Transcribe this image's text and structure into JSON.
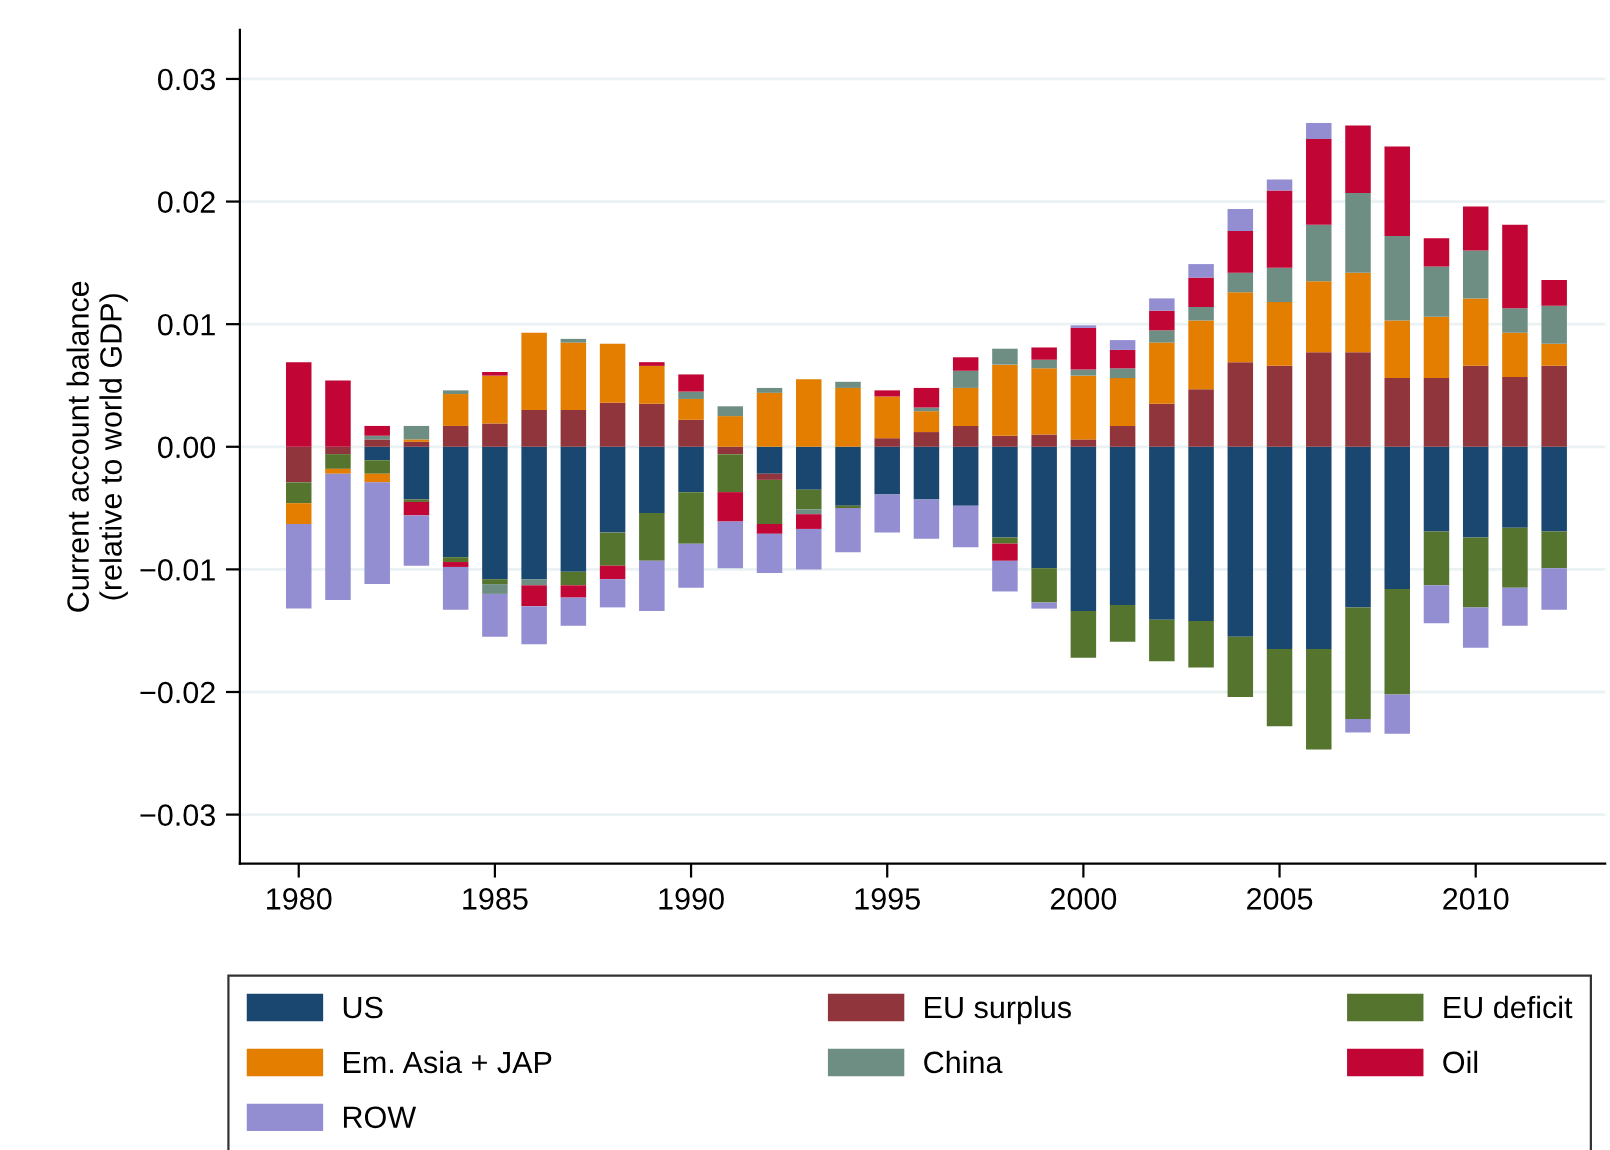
{
  "chart_data": {
    "type": "bar",
    "stacked": true,
    "ylabel": "Current account balance\n(relative to world GDP)",
    "x": [
      1980,
      1981,
      1982,
      1983,
      1984,
      1985,
      1986,
      1987,
      1988,
      1989,
      1990,
      1991,
      1992,
      1993,
      1994,
      1995,
      1996,
      1997,
      1998,
      1999,
      2000,
      2001,
      2002,
      2003,
      2004,
      2005,
      2006,
      2007,
      2008,
      2009,
      2010,
      2011,
      2012
    ],
    "xlim": [
      1978.5,
      2013.3
    ],
    "xticks": [
      1980,
      1985,
      1990,
      1995,
      2000,
      2005,
      2010
    ],
    "ylim": [
      -0.034,
      0.034
    ],
    "yticks": [
      {
        "value": 0.03,
        "label": "0.03"
      },
      {
        "value": 0.02,
        "label": "0.02"
      },
      {
        "value": 0.01,
        "label": "0.01"
      },
      {
        "value": 0,
        "label": "0.00"
      },
      {
        "value": -0.01,
        "label": "−0.01"
      },
      {
        "value": -0.02,
        "label": "−0.02"
      },
      {
        "value": -0.03,
        "label": "−0.03"
      }
    ],
    "grid": "y",
    "legend": "bottom",
    "series": [
      {
        "name": "US",
        "color": "#1a476f",
        "values": [
          0,
          0,
          -0.0011,
          -0.0043,
          -0.009,
          -0.0108,
          -0.0108,
          -0.0102,
          -0.007,
          -0.0054,
          -0.0037,
          0,
          -0.0022,
          -0.0035,
          -0.0048,
          -0.0039,
          -0.0043,
          -0.0048,
          -0.0074,
          -0.0099,
          -0.0134,
          -0.0129,
          -0.0141,
          -0.0142,
          -0.0155,
          -0.0165,
          -0.0165,
          -0.0131,
          -0.0116,
          -0.0069,
          -0.0074,
          -0.0066,
          -0.0069
        ]
      },
      {
        "name": "EU surplus",
        "color": "#90353b",
        "values": [
          -0.0029,
          -0.0006,
          0.0006,
          0.0004,
          0.0017,
          0.0019,
          0.003,
          0.003,
          0.0036,
          0.0035,
          0.0022,
          -0.0006,
          -0.0005,
          0,
          0,
          0.0007,
          0.0012,
          0.0017,
          0.0009,
          0.001,
          0.0006,
          0.0017,
          0.0035,
          0.0047,
          0.0069,
          0.0066,
          0.0077,
          0.0077,
          0.0056,
          0.0056,
          0.0066,
          0.0057,
          0.0066
        ]
      },
      {
        "name": "EU deficit",
        "color": "#55752f",
        "values": [
          -0.0017,
          -0.0012,
          -0.0011,
          -0.0002,
          -0.0004,
          -0.0004,
          0,
          -0.0011,
          -0.0027,
          -0.0039,
          -0.0042,
          -0.0031,
          -0.0036,
          -0.0016,
          -0.0002,
          0,
          0,
          0,
          -0.0005,
          -0.0028,
          -0.0038,
          -0.003,
          -0.0034,
          -0.0038,
          -0.0049,
          -0.0063,
          -0.0082,
          -0.0091,
          -0.0086,
          -0.0044,
          -0.0057,
          -0.0049,
          -0.003
        ]
      },
      {
        "name": "Em. Asia + JAP",
        "color": "#e37e00",
        "values": [
          -0.0017,
          -0.0004,
          -0.0007,
          0.0002,
          0.0026,
          0.0039,
          0.0063,
          0.0055,
          0.0048,
          0.0031,
          0.0017,
          0.0025,
          0.0044,
          0.0055,
          0.0048,
          0.0034,
          0.0017,
          0.0031,
          0.0058,
          0.0054,
          0.0052,
          0.0039,
          0.005,
          0.0056,
          0.0057,
          0.0052,
          0.0058,
          0.0065,
          0.0047,
          0.005,
          0.0055,
          0.0036,
          0.0018
        ]
      },
      {
        "name": "China",
        "color": "#6e8e84",
        "values": [
          0,
          0,
          0.0003,
          0.0011,
          0.0003,
          -0.0008,
          -0.0005,
          0.0003,
          0,
          0,
          0.0006,
          0.0008,
          0.0004,
          -0.0004,
          0.0005,
          0,
          0.0003,
          0.0014,
          0.0013,
          0.0007,
          0.0005,
          0.0008,
          0.001,
          0.0011,
          0.0016,
          0.0028,
          0.0046,
          0.0065,
          0.0069,
          0.0041,
          0.0039,
          0.002,
          0.0031
        ]
      },
      {
        "name": "Oil",
        "color": "#c10534",
        "values": [
          0.0069,
          0.0054,
          0.0008,
          -0.0011,
          -0.0004,
          0.0003,
          -0.0017,
          -0.001,
          -0.0011,
          0.0003,
          0.0014,
          -0.0024,
          -0.0008,
          -0.0012,
          0,
          0.0005,
          0.0016,
          0.0011,
          -0.0014,
          0.001,
          0.0034,
          0.0015,
          0.0016,
          0.0024,
          0.0034,
          0.0063,
          0.007,
          0.0055,
          0.0073,
          0.0023,
          0.0036,
          0.0068,
          0.0021
        ]
      },
      {
        "name": "ROW",
        "color": "#938dd2",
        "values": [
          -0.0069,
          -0.0103,
          -0.0083,
          -0.0041,
          -0.0035,
          -0.0035,
          -0.0031,
          -0.0023,
          -0.0023,
          -0.0041,
          -0.0036,
          -0.0038,
          -0.0032,
          -0.0033,
          -0.0036,
          -0.0031,
          -0.0032,
          -0.0034,
          -0.0025,
          -0.0005,
          0.0002,
          0.0008,
          0.001,
          0.0011,
          0.0018,
          0.0009,
          0.0013,
          -0.0011,
          -0.0032,
          -0.0031,
          -0.0033,
          -0.0031,
          -0.0034
        ]
      }
    ]
  }
}
